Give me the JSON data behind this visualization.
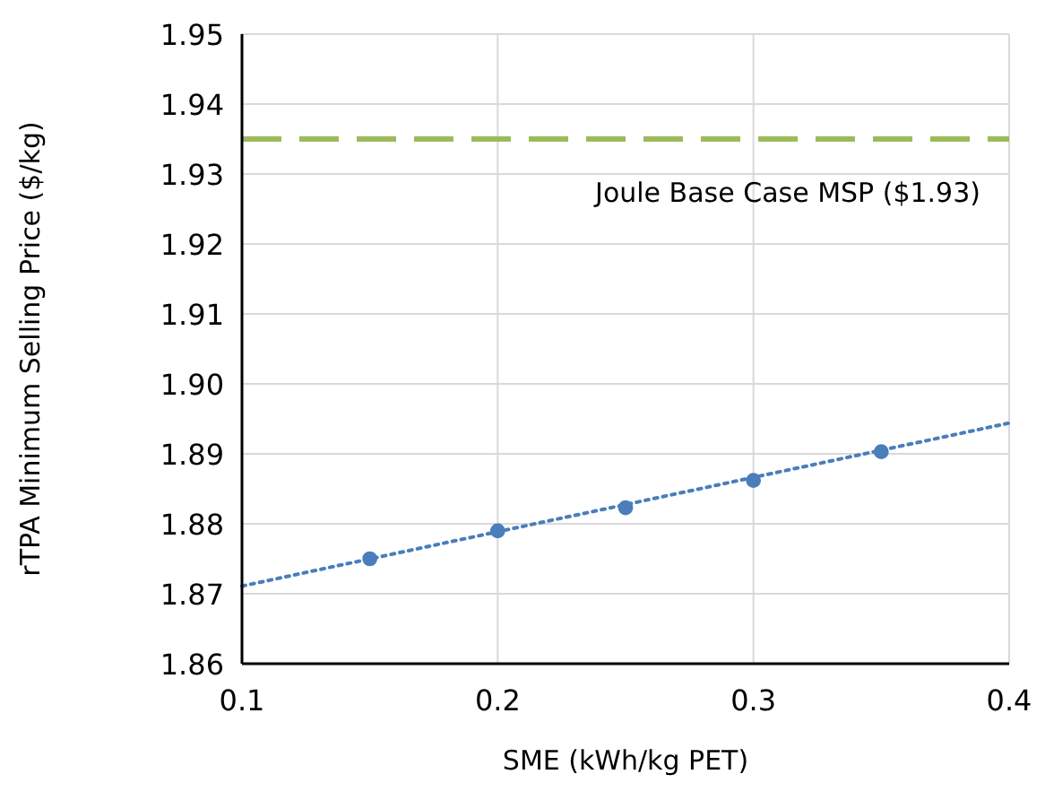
{
  "chart_data": {
    "type": "scatter",
    "xlabel": "SME (kWh/kg PET)",
    "ylabel": "rTPA Minimum Selling Price ($/kg)",
    "x": [
      0.15,
      0.2,
      0.25,
      0.3,
      0.35
    ],
    "series": [
      {
        "color": "#4a7ebb",
        "values": [
          1.875,
          1.879,
          1.8823,
          1.8862,
          1.8903
        ],
        "marker": "circle"
      },
      {
        "type": "line",
        "color": "#4a7ebb",
        "x": [
          0.1,
          0.4
        ],
        "values": [
          1.8711,
          1.8944
        ],
        "line_style": "dotted",
        "marker": "none"
      }
    ],
    "xlim": [
      0.1,
      0.4
    ],
    "xticks": [
      0.1,
      0.2,
      0.3,
      0.4
    ],
    "ylim": [
      1.86,
      1.95
    ],
    "yticks": [
      1.86,
      1.87,
      1.88,
      1.89,
      {
        "value": 1.9,
        "label": "1.90"
      },
      1.91,
      1.92,
      1.93,
      1.94,
      1.95
    ],
    "grid": true,
    "ref_lines": [
      {
        "axis": "y",
        "value": 1.935,
        "label": "Joule Base Case MSP ($1.93)",
        "color": "#9bbb59",
        "line_style": "dashed"
      }
    ]
  }
}
